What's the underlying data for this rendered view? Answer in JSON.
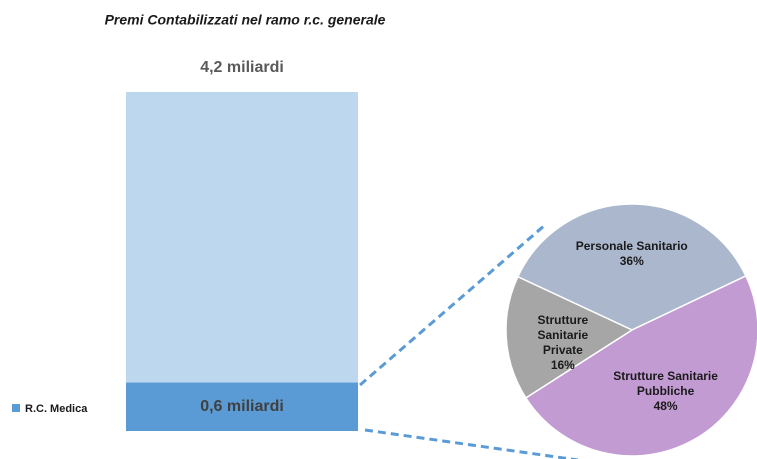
{
  "chart_data": [
    {
      "type": "bar",
      "title": "Premi Contabilizzati nel ramo r.c. generale",
      "categories": [
        null
      ],
      "series": [
        {
          "color": "#bdd7ee",
          "values": [
            4.2
          ],
          "value_labels": [
            "4,2 miliardi"
          ]
        },
        {
          "name": "R.C. Medica",
          "color": "#5b9bd5",
          "values": [
            0.6
          ],
          "value_labels": [
            "0,6 miliardi"
          ]
        }
      ]
    },
    {
      "type": "pie",
      "categories": [
        "Personale Sanitario",
        "Strutture Sanitarie Pubbliche",
        "Strutture Sanitarie Private"
      ],
      "values": [
        36,
        48,
        16
      ],
      "value_labels": [
        "36%",
        "48%",
        "16%"
      ],
      "colors": [
        "#aab7cd",
        "#c39bd3",
        "#a6a6a6"
      ]
    }
  ]
}
